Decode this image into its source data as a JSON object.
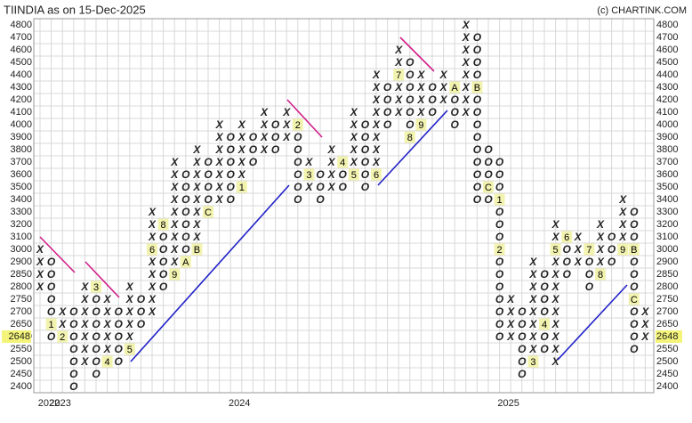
{
  "chart_data": {
    "type": "point-and-figure",
    "title": "TIINDIA as on 15-Dec-2025",
    "credit": "(c) CHARTINK.COM",
    "yticks": [
      4800,
      4700,
      4600,
      4500,
      4400,
      4300,
      4200,
      4100,
      4000,
      3900,
      3800,
      3700,
      3600,
      3500,
      3400,
      3300,
      3200,
      3100,
      3000,
      2900,
      2850,
      2800,
      2750,
      2700,
      2650,
      2600,
      2550,
      2500,
      2450,
      2400
    ],
    "current_price": 2648,
    "x_colors": {
      "X": "#2e8b2e",
      "O": "#e02424"
    },
    "grid": true,
    "x_labels": [
      {
        "column": 0,
        "label": "2022"
      },
      {
        "column": 1,
        "label": "2023"
      },
      {
        "column": 17,
        "label": "2024"
      },
      {
        "column": 41,
        "label": "2025"
      }
    ],
    "columns": [
      {
        "type": "X",
        "from": 2800,
        "to": 3000,
        "markers": []
      },
      {
        "type": "O",
        "from": 2900,
        "to": 2600,
        "markers": [
          {
            "level": 2650,
            "label": "1"
          }
        ]
      },
      {
        "type": "X",
        "from": 2600,
        "to": 2700,
        "markers": [
          {
            "level": 2600,
            "label": "2"
          }
        ]
      },
      {
        "type": "O",
        "from": 2700,
        "to": 2400,
        "markers": []
      },
      {
        "type": "X",
        "from": 2500,
        "to": 2800,
        "markers": []
      },
      {
        "type": "O",
        "from": 2800,
        "to": 2450,
        "markers": [
          {
            "level": 2800,
            "label": "3"
          }
        ]
      },
      {
        "type": "X",
        "from": 2500,
        "to": 2750,
        "markers": [
          {
            "level": 2500,
            "label": "4"
          }
        ]
      },
      {
        "type": "O",
        "from": 2700,
        "to": 2500,
        "markers": []
      },
      {
        "type": "X",
        "from": 2550,
        "to": 2800,
        "markers": [
          {
            "level": 2550,
            "label": "5"
          }
        ]
      },
      {
        "type": "O",
        "from": 2750,
        "to": 2650,
        "markers": []
      },
      {
        "type": "X",
        "from": 2700,
        "to": 3300,
        "markers": [
          {
            "level": 3000,
            "label": "6"
          }
        ]
      },
      {
        "type": "O",
        "from": 3200,
        "to": 2800,
        "markers": [
          {
            "level": 3200,
            "label": "8"
          }
        ]
      },
      {
        "type": "X",
        "from": 2850,
        "to": 3700,
        "markers": [
          {
            "level": 2850,
            "label": "9"
          }
        ]
      },
      {
        "type": "O",
        "from": 3600,
        "to": 2900,
        "markers": [
          {
            "level": 2900,
            "label": "A"
          }
        ]
      },
      {
        "type": "X",
        "from": 3000,
        "to": 3800,
        "markers": [
          {
            "level": 3000,
            "label": "B"
          }
        ]
      },
      {
        "type": "O",
        "from": 3700,
        "to": 3300,
        "markers": [
          {
            "level": 3300,
            "label": "C"
          }
        ]
      },
      {
        "type": "X",
        "from": 3400,
        "to": 4000,
        "markers": []
      },
      {
        "type": "O",
        "from": 3900,
        "to": 3400,
        "markers": []
      },
      {
        "type": "X",
        "from": 3500,
        "to": 4000,
        "markers": [
          {
            "level": 3500,
            "label": "1"
          }
        ]
      },
      {
        "type": "O",
        "from": 3900,
        "to": 3700,
        "markers": []
      },
      {
        "type": "X",
        "from": 3800,
        "to": 4100,
        "markers": []
      },
      {
        "type": "O",
        "from": 4000,
        "to": 3800,
        "markers": []
      },
      {
        "type": "X",
        "from": 3900,
        "to": 4100,
        "markers": []
      },
      {
        "type": "O",
        "from": 4000,
        "to": 3400,
        "markers": [
          {
            "level": 4000,
            "label": "2"
          }
        ]
      },
      {
        "type": "X",
        "from": 3500,
        "to": 3700,
        "markers": [
          {
            "level": 3600,
            "label": "3"
          }
        ]
      },
      {
        "type": "O",
        "from": 3600,
        "to": 3400,
        "markers": []
      },
      {
        "type": "X",
        "from": 3500,
        "to": 3800,
        "markers": []
      },
      {
        "type": "O",
        "from": 3700,
        "to": 3500,
        "markers": [
          {
            "level": 3700,
            "label": "4"
          }
        ]
      },
      {
        "type": "X",
        "from": 3600,
        "to": 4100,
        "markers": [
          {
            "level": 3600,
            "label": "5"
          }
        ]
      },
      {
        "type": "O",
        "from": 4000,
        "to": 3500,
        "markers": []
      },
      {
        "type": "X",
        "from": 3600,
        "to": 4400,
        "markers": [
          {
            "level": 3600,
            "label": "6"
          }
        ]
      },
      {
        "type": "O",
        "from": 4300,
        "to": 4000,
        "markers": []
      },
      {
        "type": "X",
        "from": 4100,
        "to": 4600,
        "markers": [
          {
            "level": 4400,
            "label": "7"
          }
        ]
      },
      {
        "type": "O",
        "from": 4500,
        "to": 3900,
        "markers": [
          {
            "level": 3900,
            "label": "8"
          }
        ]
      },
      {
        "type": "X",
        "from": 4000,
        "to": 4400,
        "markers": [
          {
            "level": 4000,
            "label": "9"
          }
        ]
      },
      {
        "type": "O",
        "from": 4300,
        "to": 4100,
        "markers": []
      },
      {
        "type": "X",
        "from": 4200,
        "to": 4400,
        "markers": []
      },
      {
        "type": "O",
        "from": 4300,
        "to": 4000,
        "markers": [
          {
            "level": 4300,
            "label": "A"
          }
        ]
      },
      {
        "type": "X",
        "from": 4100,
        "to": 4800,
        "markers": []
      },
      {
        "type": "O",
        "from": 4700,
        "to": 3400,
        "markers": [
          {
            "level": 4300,
            "label": "B"
          }
        ]
      },
      {
        "type": "O",
        "from": 3800,
        "to": 3400,
        "markers": [
          {
            "level": 3500,
            "label": "C"
          }
        ]
      },
      {
        "type": "O",
        "from": 3700,
        "to": 2600,
        "markers": [
          {
            "level": 3400,
            "label": "1"
          },
          {
            "level": 3000,
            "label": "2"
          }
        ]
      },
      {
        "type": "X",
        "from": 2600,
        "to": 2750,
        "markers": []
      },
      {
        "type": "O",
        "from": 2700,
        "to": 2450,
        "markers": []
      },
      {
        "type": "X",
        "from": 2500,
        "to": 2900,
        "markers": [
          {
            "level": 2500,
            "label": "3"
          }
        ]
      },
      {
        "type": "O",
        "from": 2850,
        "to": 2550,
        "markers": [
          {
            "level": 2650,
            "label": "4"
          }
        ]
      },
      {
        "type": "X",
        "from": 2500,
        "to": 3200,
        "markers": [
          {
            "level": 3000,
            "label": "5"
          }
        ]
      },
      {
        "type": "O",
        "from": 3100,
        "to": 2850,
        "markers": [
          {
            "level": 3100,
            "label": "6"
          }
        ]
      },
      {
        "type": "X",
        "from": 2900,
        "to": 3100,
        "markers": []
      },
      {
        "type": "O",
        "from": 3000,
        "to": 2800,
        "markers": [
          {
            "level": 3000,
            "label": "7"
          }
        ]
      },
      {
        "type": "X",
        "from": 2850,
        "to": 3200,
        "markers": [
          {
            "level": 2850,
            "label": "8"
          }
        ]
      },
      {
        "type": "O",
        "from": 3100,
        "to": 2900,
        "markers": []
      },
      {
        "type": "X",
        "from": 3000,
        "to": 3400,
        "markers": [
          {
            "level": 3000,
            "label": "9"
          }
        ]
      },
      {
        "type": "O",
        "from": 3300,
        "to": 2550,
        "markers": [
          {
            "level": 3000,
            "label": "B"
          },
          {
            "level": 2750,
            "label": "C"
          }
        ]
      },
      {
        "type": "X",
        "from": 2600,
        "to": 2700,
        "markers": []
      }
    ]
  }
}
